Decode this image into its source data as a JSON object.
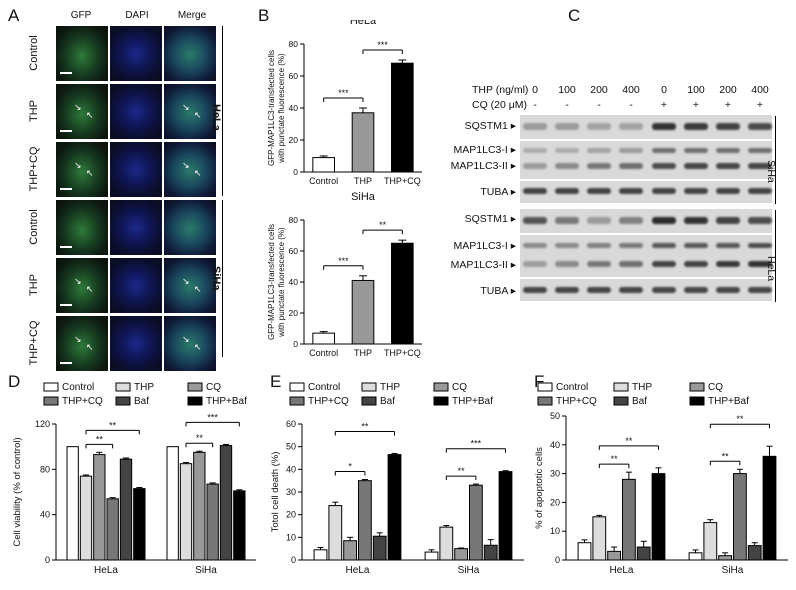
{
  "panel_labels": {
    "A": "A",
    "B": "B",
    "C": "C",
    "D": "D",
    "E": "E",
    "F": "F"
  },
  "panelA": {
    "columns": [
      "GFP",
      "DAPI",
      "Merge"
    ],
    "rows": [
      "Control",
      "THP",
      "THP+CQ",
      "Control",
      "THP",
      "THP+CQ"
    ],
    "groups": [
      "HeLa",
      "SiHa"
    ]
  },
  "panelC": {
    "thp_label": "THP (ng/ml)",
    "cq_label": "CQ (20 μM)",
    "thp_values": [
      "0",
      "100",
      "200",
      "400",
      "0",
      "100",
      "200",
      "400"
    ],
    "cq_values": [
      "-",
      "-",
      "-",
      "-",
      "+",
      "+",
      "+",
      "+"
    ],
    "siha_rows": [
      "SQSTM1",
      "MAP1LC3-I",
      "MAP1LC3-II",
      "TUBA"
    ],
    "hela_rows": [
      "SQSTM1",
      "MAP1LC3-I",
      "MAP1LC3-II",
      "TUBA"
    ],
    "group_siha": "SiHa",
    "group_hela": "HeLa"
  },
  "chart_data": [
    {
      "id": "B1",
      "type": "bar",
      "title": "HeLa",
      "ylabel": "GFP-MAP1LC3-transfected cells with punctate fluorescence (%)",
      "categories": [
        "Control",
        "THP",
        "THP+CQ"
      ],
      "values": [
        9,
        37,
        68
      ],
      "errors": [
        1,
        3,
        2
      ],
      "ylim": [
        0,
        80
      ],
      "yticks": [
        0,
        20,
        40,
        60,
        80
      ],
      "colors": [
        "#ffffff",
        "#999999",
        "#000000"
      ],
      "sig": [
        {
          "from": 0,
          "to": 1,
          "label": "***"
        },
        {
          "from": 1,
          "to": 2,
          "label": "***"
        }
      ]
    },
    {
      "id": "B2",
      "type": "bar",
      "title": "SiHa",
      "ylabel": "GFP-MAP1LC3-transfected cells with punctate fluorescence (%)",
      "categories": [
        "Control",
        "THP",
        "THP+CQ"
      ],
      "values": [
        7,
        41,
        65
      ],
      "errors": [
        1,
        3,
        2
      ],
      "ylim": [
        0,
        80
      ],
      "yticks": [
        0,
        20,
        40,
        60,
        80
      ],
      "colors": [
        "#ffffff",
        "#999999",
        "#000000"
      ],
      "sig": [
        {
          "from": 0,
          "to": 1,
          "label": "***"
        },
        {
          "from": 1,
          "to": 2,
          "label": "**"
        }
      ]
    },
    {
      "id": "D",
      "type": "bar",
      "ylabel": "Cell viability (% of control)",
      "categories": [
        "HeLa",
        "SiHa"
      ],
      "series": [
        {
          "name": "Control",
          "values": [
            100,
            100
          ],
          "errors": [
            0,
            0
          ],
          "color": "#ffffff"
        },
        {
          "name": "THP",
          "values": [
            74,
            85
          ],
          "errors": [
            1,
            1
          ],
          "color": "#dddddd"
        },
        {
          "name": "CQ",
          "values": [
            93,
            95
          ],
          "errors": [
            2,
            1
          ],
          "color": "#999999"
        },
        {
          "name": "THP+CQ",
          "values": [
            54,
            67
          ],
          "errors": [
            1,
            1
          ],
          "color": "#777777"
        },
        {
          "name": "Baf",
          "values": [
            89,
            101
          ],
          "errors": [
            1,
            1
          ],
          "color": "#444444"
        },
        {
          "name": "THP+Baf",
          "values": [
            63,
            61
          ],
          "errors": [
            1,
            1
          ],
          "color": "#000000"
        }
      ],
      "ylim": [
        0,
        120
      ],
      "yticks": [
        0,
        40,
        80,
        120
      ],
      "sig": [
        {
          "group": 0,
          "from": 1,
          "to": 3,
          "label": "**"
        },
        {
          "group": 0,
          "from": 1,
          "to": 5,
          "label": "**"
        },
        {
          "group": 1,
          "from": 1,
          "to": 3,
          "label": "**"
        },
        {
          "group": 1,
          "from": 1,
          "to": 5,
          "label": "***"
        }
      ]
    },
    {
      "id": "E",
      "type": "bar",
      "ylabel": "Totol cell death (%)",
      "categories": [
        "HeLa",
        "SiHa"
      ],
      "series": [
        {
          "name": "Control",
          "values": [
            4.5,
            3.5
          ],
          "errors": [
            1,
            1
          ],
          "color": "#ffffff"
        },
        {
          "name": "THP",
          "values": [
            24,
            14.5
          ],
          "errors": [
            1.5,
            0.7
          ],
          "color": "#dddddd"
        },
        {
          "name": "CQ",
          "values": [
            8.5,
            5
          ],
          "errors": [
            1.5,
            0.3
          ],
          "color": "#999999"
        },
        {
          "name": "THP+CQ",
          "values": [
            35,
            33
          ],
          "errors": [
            0.5,
            0.5
          ],
          "color": "#777777"
        },
        {
          "name": "Baf",
          "values": [
            10.5,
            6.5
          ],
          "errors": [
            1.5,
            2.5
          ],
          "color": "#444444"
        },
        {
          "name": "THP+Baf",
          "values": [
            46.5,
            39
          ],
          "errors": [
            0.5,
            0.4
          ],
          "color": "#000000"
        }
      ],
      "ylim": [
        0,
        60
      ],
      "yticks": [
        0,
        10,
        20,
        30,
        40,
        50,
        60
      ],
      "sig": [
        {
          "group": 0,
          "from": 1,
          "to": 3,
          "label": "*"
        },
        {
          "group": 0,
          "from": 1,
          "to": 5,
          "label": "**"
        },
        {
          "group": 1,
          "from": 1,
          "to": 3,
          "label": "**"
        },
        {
          "group": 1,
          "from": 1,
          "to": 5,
          "label": "***"
        }
      ]
    },
    {
      "id": "F",
      "type": "bar",
      "ylabel": "% of apoptotic cells",
      "categories": [
        "HeLa",
        "SiHa"
      ],
      "series": [
        {
          "name": "Control",
          "values": [
            6,
            2.5
          ],
          "errors": [
            1,
            1
          ],
          "color": "#ffffff"
        },
        {
          "name": "THP",
          "values": [
            15,
            13
          ],
          "errors": [
            0.5,
            1
          ],
          "color": "#dddddd"
        },
        {
          "name": "CQ",
          "values": [
            3,
            1.5
          ],
          "errors": [
            1.5,
            1
          ],
          "color": "#999999"
        },
        {
          "name": "THP+CQ",
          "values": [
            28,
            30
          ],
          "errors": [
            2.5,
            1.5
          ],
          "color": "#777777"
        },
        {
          "name": "Baf",
          "values": [
            4.5,
            5
          ],
          "errors": [
            2,
            1
          ],
          "color": "#444444"
        },
        {
          "name": "THP+Baf",
          "values": [
            30,
            36
          ],
          "errors": [
            2,
            3.5
          ],
          "color": "#000000"
        }
      ],
      "ylim": [
        0,
        50
      ],
      "yticks": [
        0,
        10,
        20,
        30,
        40,
        50
      ],
      "sig": [
        {
          "group": 0,
          "from": 1,
          "to": 3,
          "label": "**"
        },
        {
          "group": 0,
          "from": 1,
          "to": 5,
          "label": "**"
        },
        {
          "group": 1,
          "from": 1,
          "to": 3,
          "label": "**"
        },
        {
          "group": 1,
          "from": 1,
          "to": 5,
          "label": "**"
        }
      ]
    }
  ]
}
